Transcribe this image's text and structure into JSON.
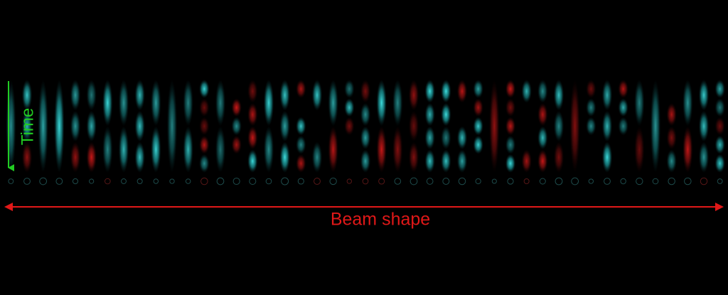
{
  "labels": {
    "time": "Time",
    "beam_shape": "Beam shape"
  }
}
